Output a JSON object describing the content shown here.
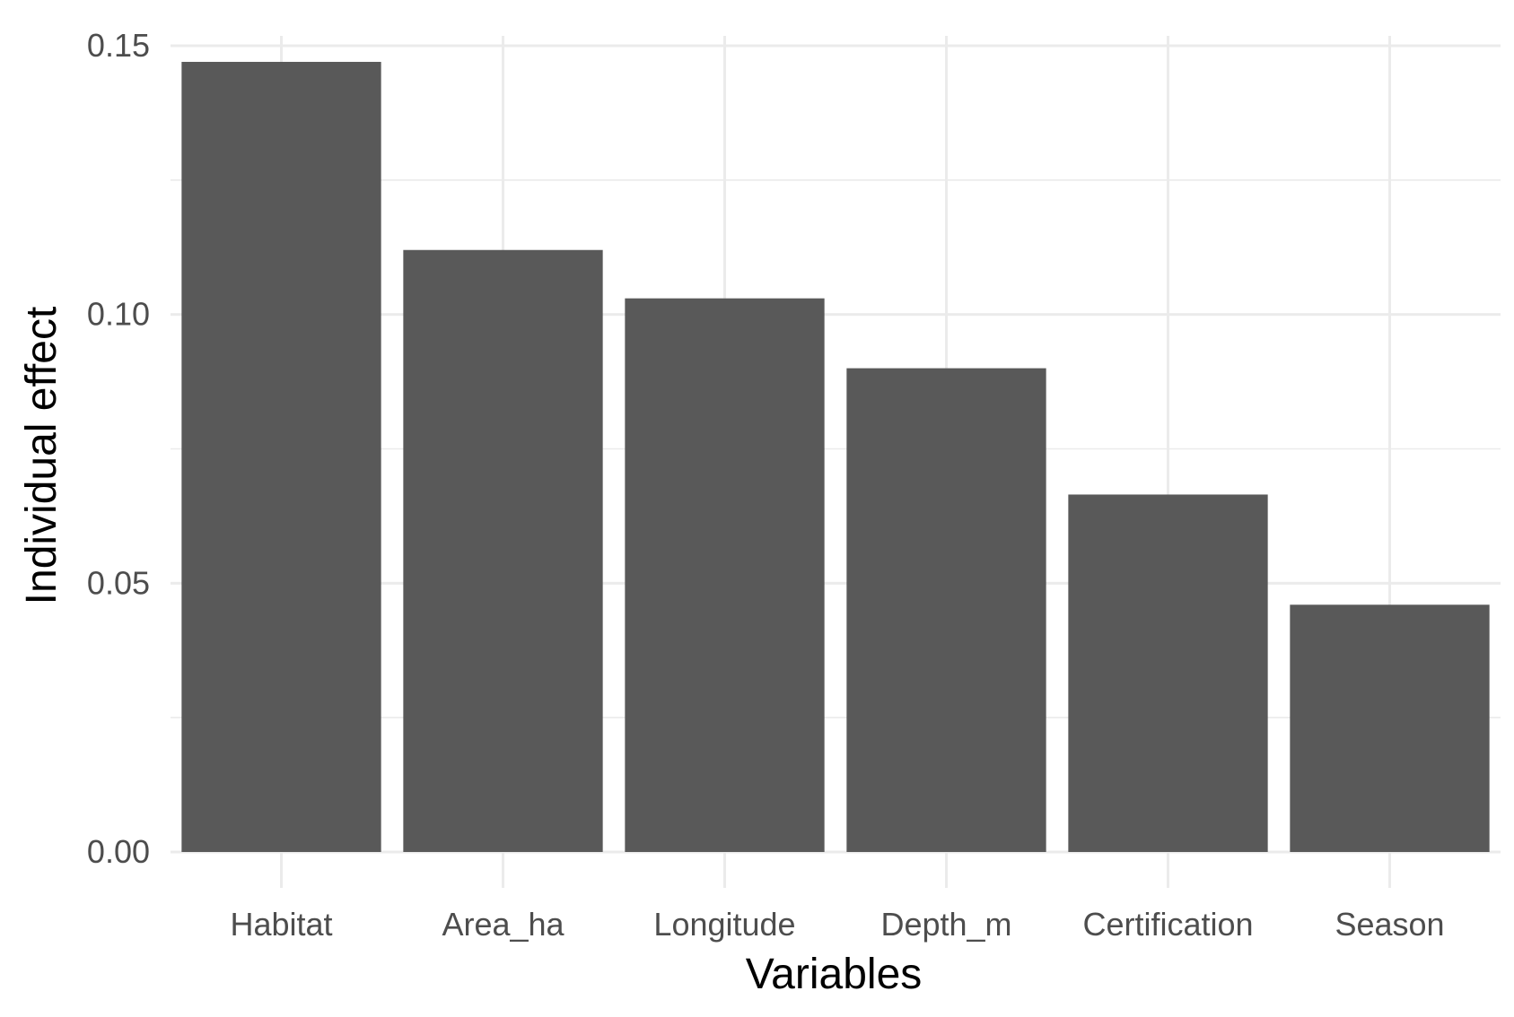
{
  "chart_data": {
    "type": "bar",
    "categories": [
      "Habitat",
      "Area_ha",
      "Longitude",
      "Depth_m",
      "Certification",
      "Season"
    ],
    "values": [
      0.147,
      0.112,
      0.103,
      0.09,
      0.0665,
      0.046
    ],
    "title": "",
    "xlabel": "Variables",
    "ylabel": "Individual effect",
    "ylim": [
      0,
      0.15
    ],
    "y_ticks": [
      "0.00",
      "0.05",
      "0.10",
      "0.15"
    ],
    "grid": true,
    "legend": "none",
    "bar_color": "#595959",
    "grid_color": "#ebebeb"
  }
}
